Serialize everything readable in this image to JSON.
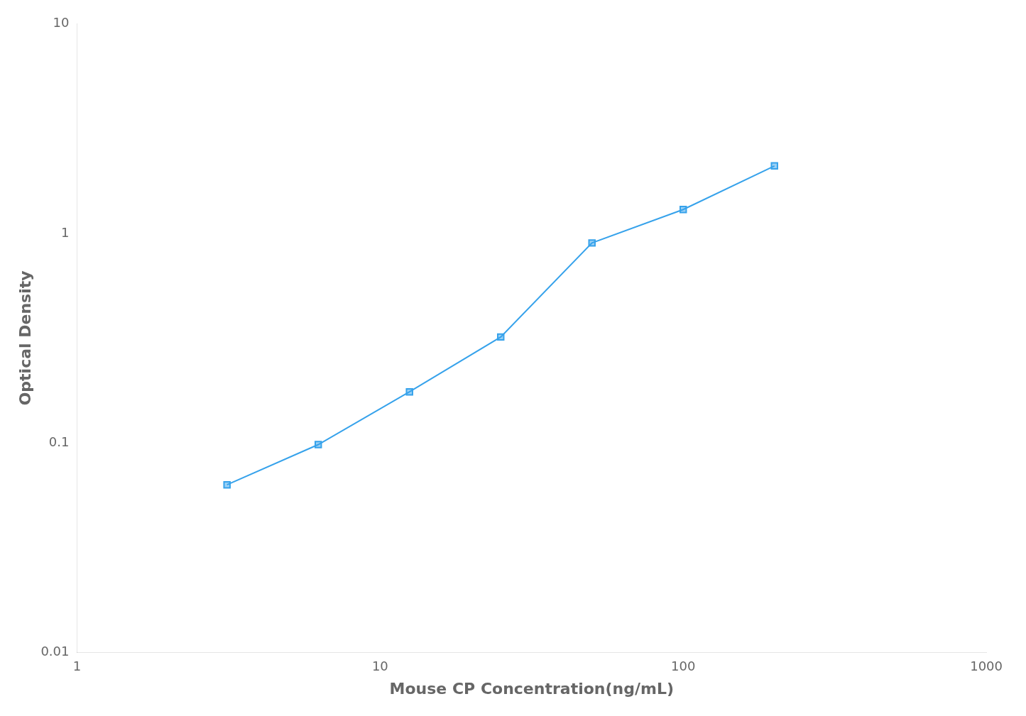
{
  "chart_data": {
    "type": "line",
    "x": [
      3.125,
      6.25,
      12.5,
      25,
      50,
      100,
      200
    ],
    "values": [
      0.063,
      0.098,
      0.175,
      0.32,
      0.9,
      1.3,
      2.1
    ],
    "xlabel": "Mouse CP Concentration(ng/mL)",
    "ylabel": "Optical Density",
    "xlim": [
      1,
      1000
    ],
    "ylim": [
      0.01,
      10
    ],
    "xticks": [
      1,
      10,
      100,
      1000
    ],
    "yticks": [
      0.01,
      0.1,
      1,
      10
    ],
    "log": true,
    "grid": false,
    "marker": "square"
  }
}
